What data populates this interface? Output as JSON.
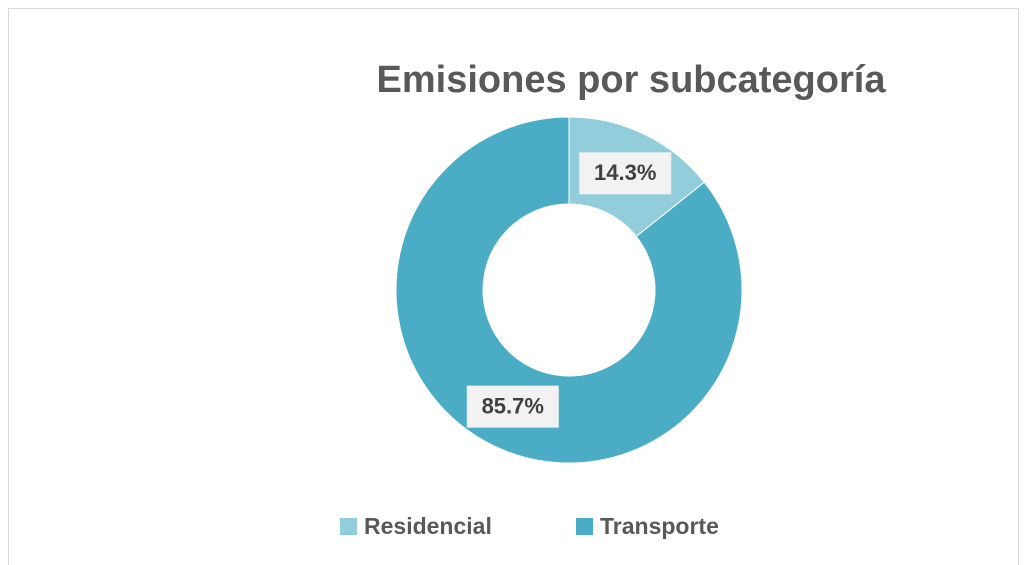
{
  "chart_data": {
    "type": "donut",
    "title": "Emisiones por subcategoría",
    "categories": [
      "Residencial",
      "Transporte"
    ],
    "values": [
      14.3,
      85.7
    ],
    "value_labels": [
      "14.3%",
      "85.7%"
    ],
    "colors": [
      "#92cddc",
      "#4bacc6"
    ],
    "legend": "bottom"
  }
}
